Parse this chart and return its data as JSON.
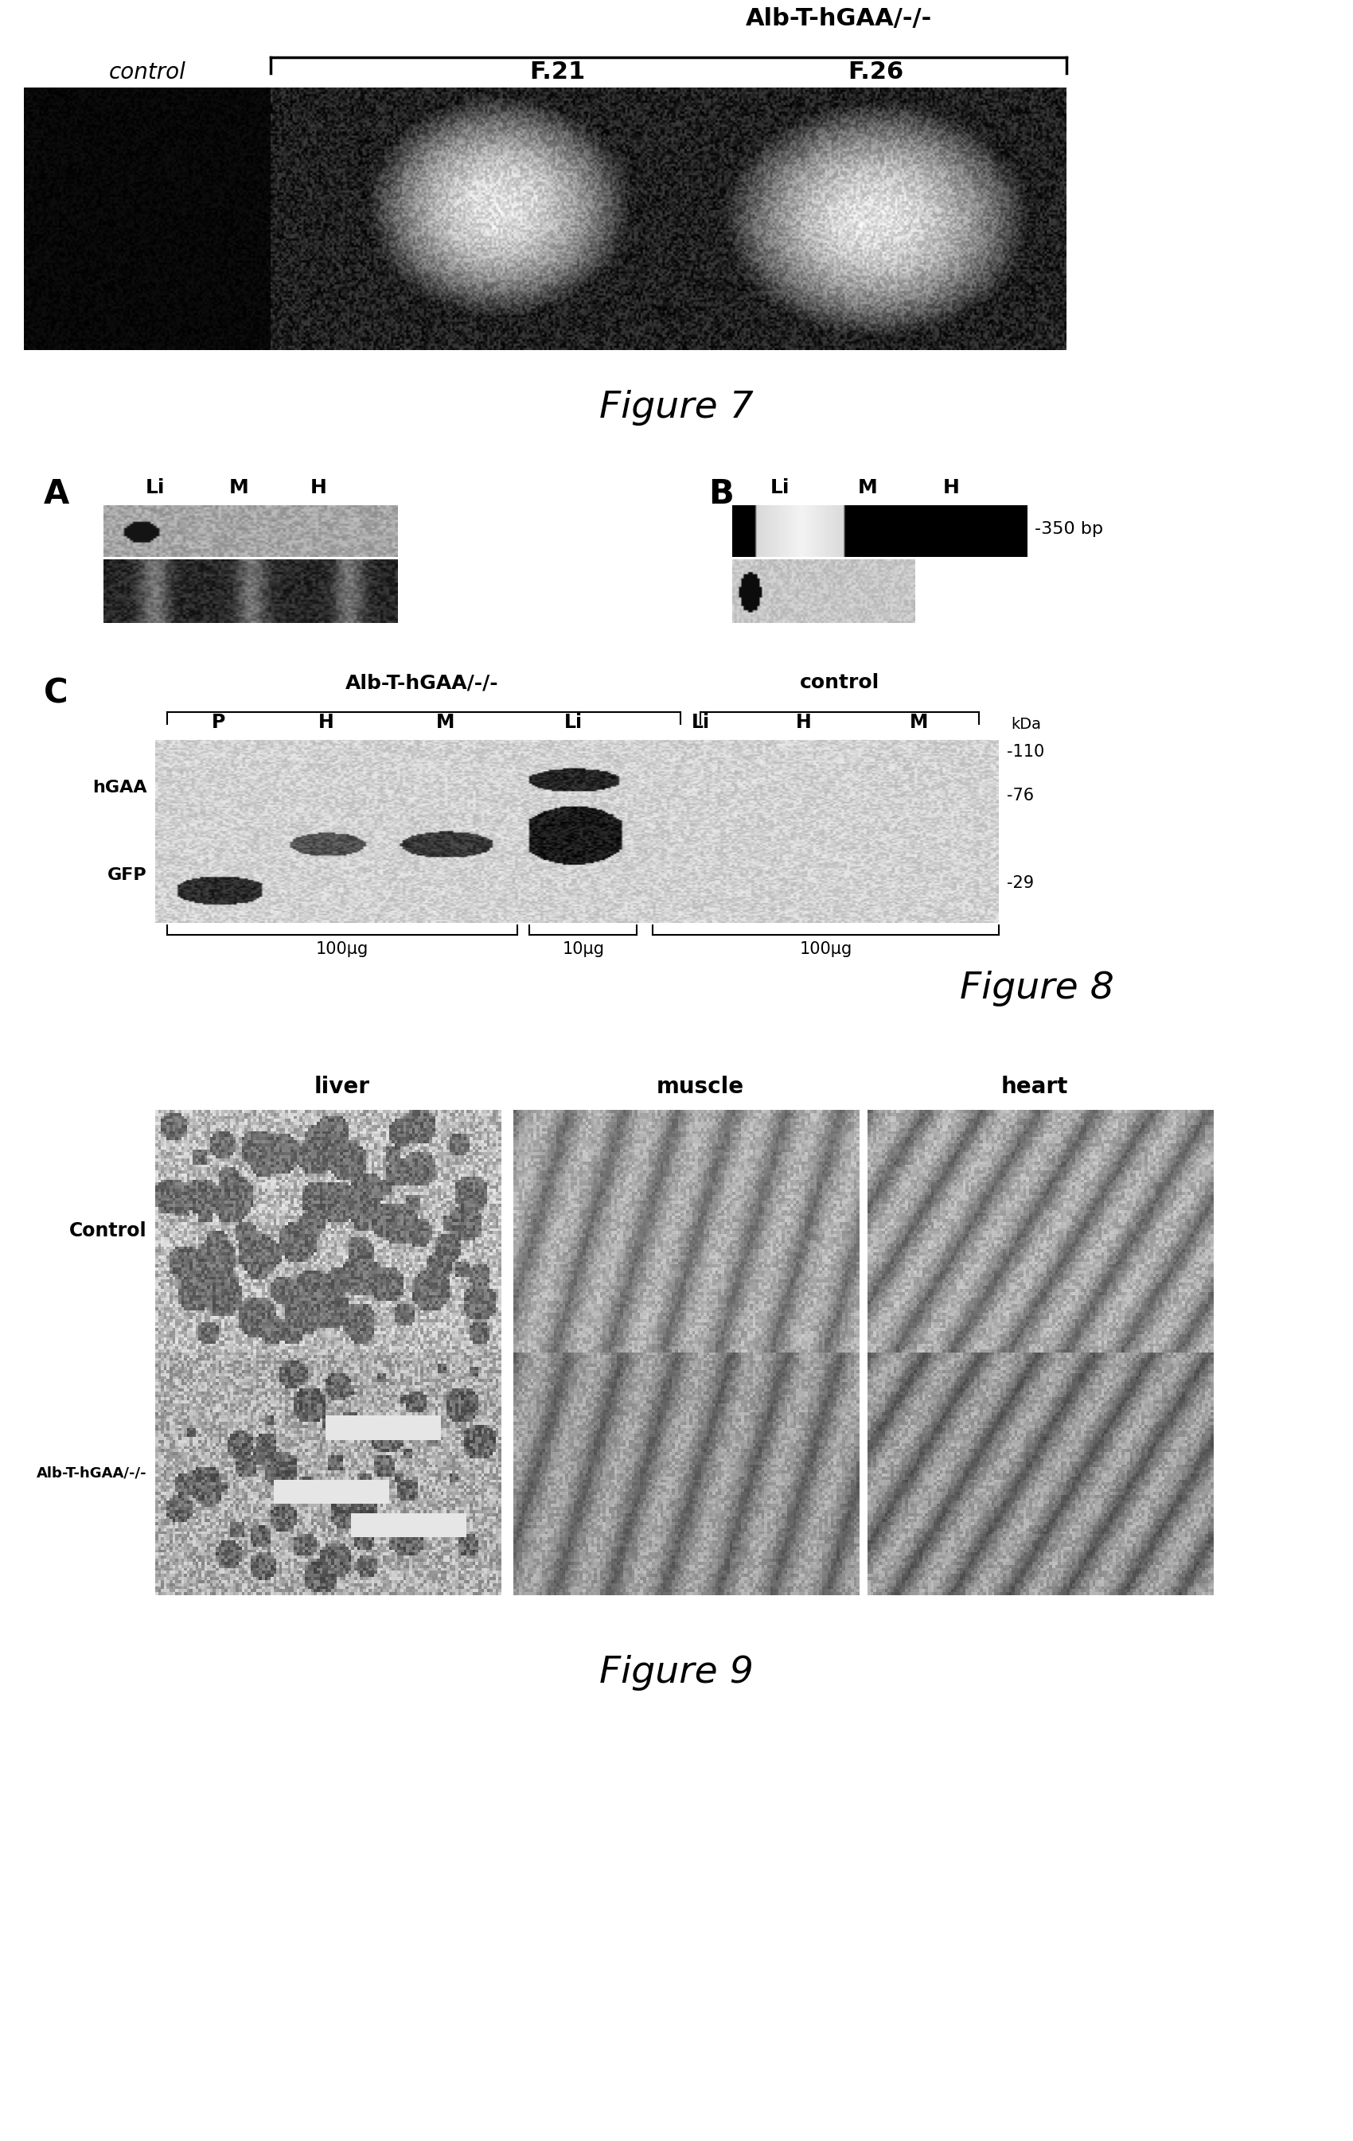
{
  "fig7": {
    "title": "Figure 7",
    "bracket_label": "Alb-T-hGAA/-/-",
    "col_labels": [
      "control",
      "F.21",
      "F.26"
    ],
    "title_fontsize": 34
  },
  "fig8": {
    "title": "Figure 8",
    "panel_a_label": "A",
    "panel_b_label": "B",
    "panel_b_bp_label": "-350 bp",
    "panel_c_label": "C",
    "panel_c_top_labels": [
      "Alb-T-hGAA/-/-",
      "control"
    ],
    "panel_c_lane_labels": [
      "P",
      "H",
      "M",
      "Li",
      "Li",
      "H",
      "M"
    ],
    "panel_c_left_labels": [
      "hGAA",
      "GFP"
    ],
    "panel_c_right_labels": [
      "-110",
      "-76",
      "-29"
    ],
    "panel_c_bottom_labels": [
      "100μg",
      "10μg",
      "100μg"
    ],
    "kda_label": "kDa",
    "title_fontsize": 34
  },
  "fig9": {
    "title": "Figure 9",
    "col_labels": [
      "liver",
      "muscle",
      "heart"
    ],
    "row_labels": [
      "Control",
      "Alb-T-hGAA/-/-"
    ],
    "title_fontsize": 34
  },
  "bg_color": "#ffffff",
  "text_color": "#000000"
}
